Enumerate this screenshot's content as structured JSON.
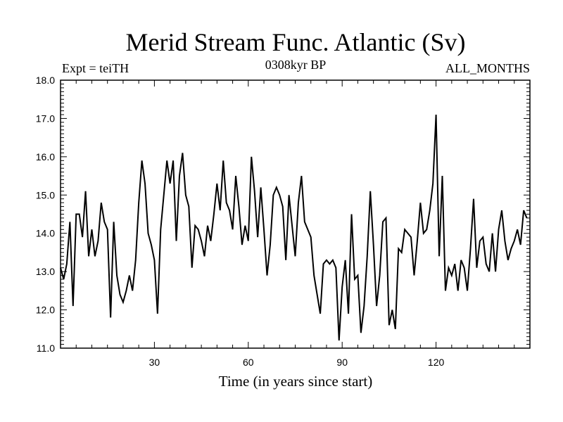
{
  "chart_data": {
    "type": "line",
    "title": "Merid Stream Func. Atlantic (Sv)",
    "subtitle_left": "Expt = teiTH",
    "subtitle_center": "0308kyr BP",
    "subtitle_right": "ALL_MONTHS",
    "xlabel": "Time (in years since start)",
    "ylabel": "",
    "xlim": [
      0,
      150
    ],
    "ylim": [
      11.0,
      18.0
    ],
    "xticks": [
      30,
      60,
      90,
      120
    ],
    "yticks": [
      11.0,
      12.0,
      13.0,
      14.0,
      15.0,
      16.0,
      17.0,
      18.0
    ],
    "ytick_labels": [
      "11.0",
      "12.0",
      "13.0",
      "14.0",
      "15.0",
      "16.0",
      "17.0",
      "18.0"
    ],
    "x_start": 0,
    "x_step": 1,
    "series": [
      {
        "name": "Merid Stream Func. Atlantic",
        "color": "#000000",
        "values": [
          13.1,
          12.8,
          13.2,
          14.3,
          12.1,
          14.5,
          14.5,
          13.9,
          15.1,
          13.4,
          14.1,
          13.4,
          13.8,
          14.8,
          14.3,
          14.1,
          11.8,
          14.3,
          12.9,
          12.4,
          12.2,
          12.5,
          12.9,
          12.5,
          13.3,
          14.8,
          15.9,
          15.3,
          14.0,
          13.7,
          13.3,
          11.9,
          14.1,
          15.0,
          15.9,
          15.3,
          15.9,
          13.8,
          15.5,
          16.1,
          15.0,
          14.7,
          13.1,
          14.2,
          14.1,
          13.8,
          13.4,
          14.2,
          13.8,
          14.5,
          15.3,
          14.6,
          15.9,
          14.8,
          14.6,
          14.1,
          15.5,
          14.7,
          13.7,
          14.2,
          13.8,
          16.0,
          15.1,
          13.9,
          15.2,
          14.1,
          12.9,
          13.7,
          15.0,
          15.2,
          15.0,
          14.7,
          13.3,
          15.0,
          14.2,
          13.4,
          14.8,
          15.5,
          14.3,
          14.1,
          13.9,
          12.9,
          12.4,
          11.9,
          13.2,
          13.3,
          13.2,
          13.3,
          13.1,
          11.2,
          12.6,
          13.3,
          11.9,
          14.5,
          12.8,
          12.9,
          11.4,
          12.1,
          13.4,
          15.1,
          13.7,
          12.1,
          12.9,
          14.3,
          14.4,
          11.6,
          12.0,
          11.5,
          13.6,
          13.5,
          14.1,
          14.0,
          13.9,
          12.9,
          13.8,
          14.8,
          14.0,
          14.1,
          14.6,
          15.3,
          17.1,
          13.4,
          15.5,
          12.5,
          13.1,
          12.9,
          13.2,
          12.5,
          13.3,
          13.1,
          12.5,
          13.6,
          14.9,
          13.1,
          13.8,
          13.9,
          13.2,
          13.0,
          14.0,
          13.0,
          14.1,
          14.6,
          13.8,
          13.3,
          13.6,
          13.8,
          14.1,
          13.7,
          14.6,
          14.4
        ]
      }
    ]
  }
}
